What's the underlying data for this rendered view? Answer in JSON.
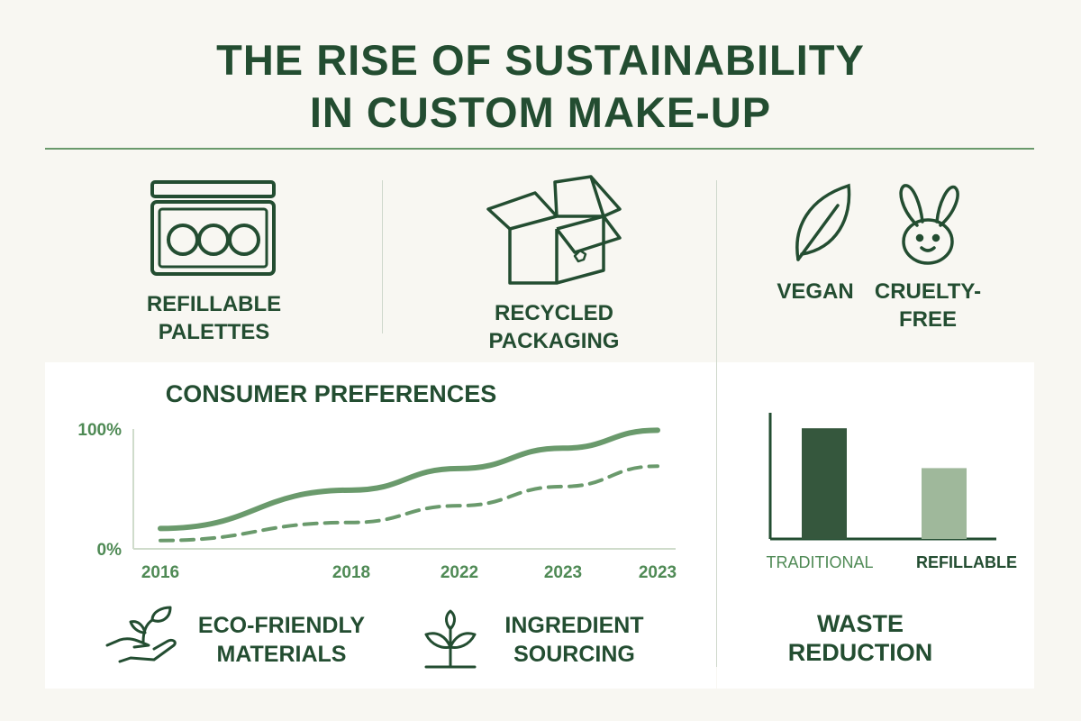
{
  "title": [
    "THE RISE OF SUSTAINABILITY",
    "IN CUSTOM MAKE-UP"
  ],
  "features": {
    "refillable": {
      "label": [
        "REFILLABLE",
        "PALETTES"
      ],
      "icon": "palette-icon"
    },
    "recycled": {
      "label": [
        "RECYCLED",
        "PACKAGING"
      ],
      "icon": "box-icon"
    },
    "vegan": {
      "label": "VEGAN",
      "icon": "leaf-icon"
    },
    "cruelty_free": {
      "label": [
        "CRUELTY-",
        "FREE"
      ],
      "icon": "bunny-icon"
    },
    "eco_materials": {
      "label": [
        "ECO-FRIENDLY",
        "MATERIALS"
      ],
      "icon": "hand-sprout-icon"
    },
    "ingredients": {
      "label": [
        "INGREDIENT",
        "SOURCING"
      ],
      "icon": "sprout-icon"
    },
    "waste": {
      "label": [
        "WASTE",
        "REDUCTION"
      ]
    }
  },
  "colors": {
    "dark_green": "#2f5a3c",
    "mid_green": "#6a9a6c",
    "light_green": "#9fb89b",
    "background": "#f8f7f2"
  },
  "chart_data": [
    {
      "type": "line",
      "title": "CONSUMER PREFERENCES",
      "categories": [
        "2016",
        "2018",
        "2022",
        "2023",
        "2023"
      ],
      "yticks": [
        "0%",
        "100%"
      ],
      "ylim": [
        0,
        100
      ],
      "grid": false,
      "series": [
        {
          "style": "solid",
          "values": [
            17,
            49,
            67,
            84,
            99
          ]
        },
        {
          "style": "dashed",
          "values": [
            7,
            22,
            36,
            52,
            69
          ]
        }
      ]
    },
    {
      "type": "bar",
      "categories": [
        "TRADITIONAL",
        "REFILLABLE"
      ],
      "values": [
        100,
        64
      ],
      "ylim": [
        0,
        114
      ],
      "colors": [
        "#35573d",
        "#9fb89b"
      ]
    }
  ]
}
